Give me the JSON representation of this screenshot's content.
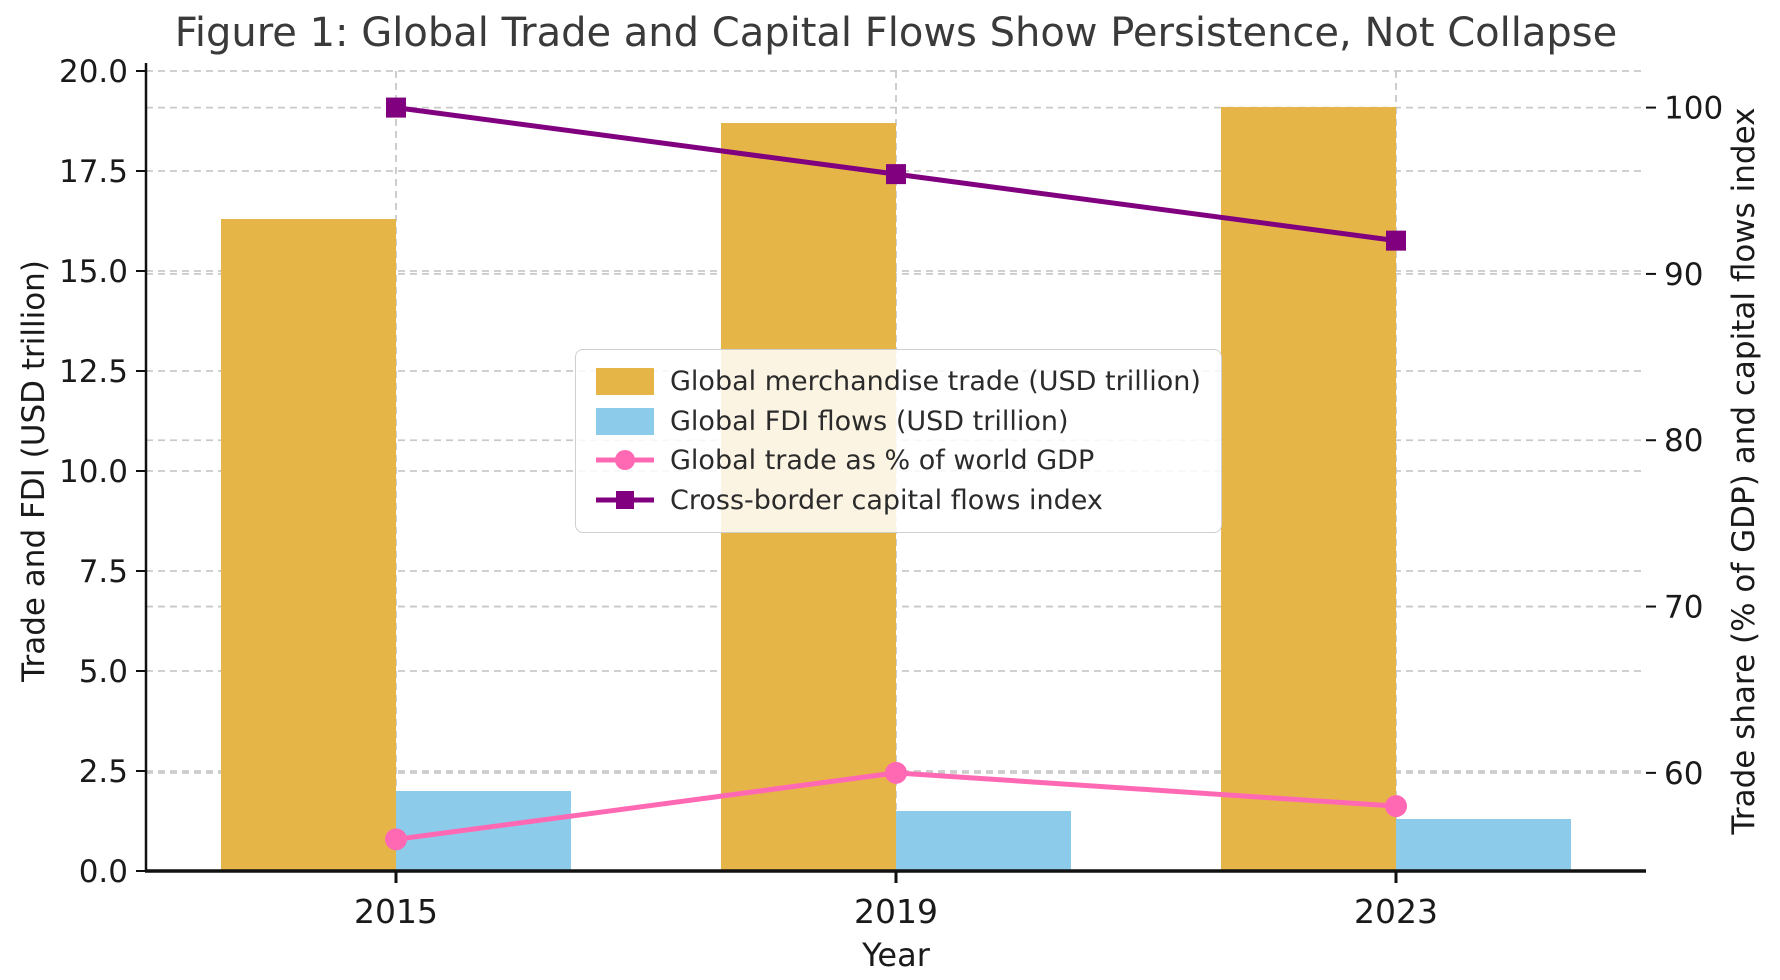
{
  "chart_data": {
    "type": "combo",
    "title": "Figure 1: Global Trade and Capital Flows Show Persistence, Not Collapse",
    "xlabel": "Year",
    "ylabel_left": "Trade and FDI (USD trillion)",
    "ylabel_right": "Trade share (% of GDP) and capital flows index",
    "categories": [
      "2015",
      "2019",
      "2023"
    ],
    "series": [
      {
        "name": "Global merchandise trade (USD trillion)",
        "type": "bar",
        "axis": "left",
        "color": "#E6B547",
        "values": [
          16.3,
          18.7,
          19.1
        ]
      },
      {
        "name": "Global FDI flows (USD trillion)",
        "type": "bar",
        "axis": "left",
        "color": "#8CCBEA",
        "values": [
          2.0,
          1.5,
          1.3
        ]
      },
      {
        "name": "Global trade as % of world GDP",
        "type": "line",
        "marker": "circle",
        "axis": "right",
        "color": "#FF69B4",
        "values": [
          56,
          60,
          58
        ]
      },
      {
        "name": "Cross-border capital flows index",
        "type": "line",
        "marker": "square",
        "axis": "right",
        "color": "#800080",
        "values": [
          100,
          96,
          92
        ]
      }
    ],
    "ylim_left": [
      0,
      20
    ],
    "yticks_left": [
      "0.0",
      "2.5",
      "5.0",
      "7.5",
      "10.0",
      "12.5",
      "15.0",
      "17.5",
      "20.0"
    ],
    "ylim_right": [
      54.1,
      102.2
    ],
    "yticks_right": [
      "60",
      "70",
      "80",
      "90",
      "100"
    ],
    "grid": "dashed-both-axes-and-vertical",
    "legend_position": "upper-center-left",
    "colors": {
      "grid": "#C9C9C9",
      "spine": "#111111",
      "tick_text": "#1A1A1A",
      "title_text": "#3A3A3A"
    }
  }
}
